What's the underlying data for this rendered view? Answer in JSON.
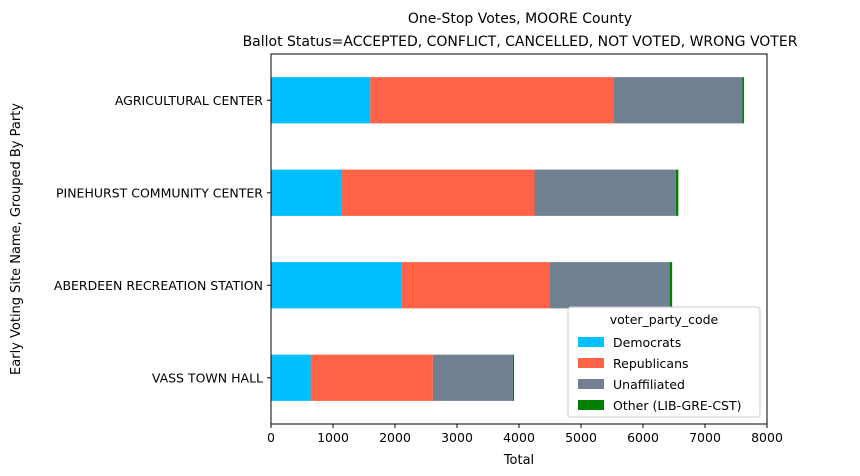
{
  "chart_data": {
    "type": "bar",
    "orientation": "horizontal",
    "stacked": true,
    "title": "One-Stop Votes, MOORE County",
    "subtitle": "Ballot Status=ACCEPTED, CONFLICT, CANCELLED, NOT VOTED, WRONG VOTER",
    "xlabel": "Total",
    "ylabel": "Early Voting Site Name, Grouped By Party",
    "xlim": [
      0,
      8000
    ],
    "xticks": [
      0,
      1000,
      2000,
      3000,
      4000,
      5000,
      6000,
      7000,
      8000
    ],
    "grid": false,
    "categories": [
      "AGRICULTURAL CENTER",
      "PINEHURST COMMUNITY CENTER",
      "ABERDEEN RECREATION STATION",
      "VASS TOWN HALL"
    ],
    "series": [
      {
        "name": "Democrats",
        "color": "#00bfff",
        "values": [
          1600,
          1130,
          2100,
          640
        ]
      },
      {
        "name": "Republicans",
        "color": "#ff6347",
        "values": [
          3920,
          3120,
          2400,
          1970
        ]
      },
      {
        "name": "Unaffiliated",
        "color": "#708090",
        "values": [
          2080,
          2280,
          1930,
          1290
        ]
      },
      {
        "name": "Other (LIB-GRE-CST)",
        "color": "#008000",
        "values": [
          30,
          40,
          40,
          20
        ]
      }
    ],
    "legend": {
      "title": "voter_party_code",
      "placement": "lower-right"
    }
  }
}
